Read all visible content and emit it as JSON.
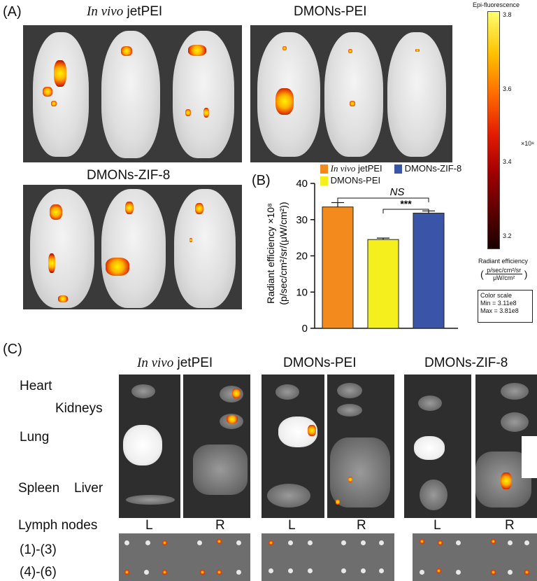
{
  "panels": {
    "a_label": "(A)",
    "b_label": "(B)",
    "c_label": "(C)"
  },
  "groups": {
    "jetpei_italic": "In vivo",
    "jetpei_rest": " jetPEI",
    "dmons_pei": "DMONs-PEI",
    "dmons_zif8": "DMONs-ZIF-8"
  },
  "colorbar": {
    "title": "Epi-fluorescence",
    "ticks": [
      "3.8",
      "3.6",
      "3.4",
      "3.2"
    ],
    "exponent": "×10⁸",
    "unit_label": "Radiant efficiency",
    "unit_num": "p/sec/cm²/sr",
    "unit_den": "μW/cm²",
    "scale_title": "Color scale",
    "scale_min": "Min = 3.11e8",
    "scale_max": "Max = 3.81e8",
    "colors": {
      "low": "#1a0000",
      "high": "#ffff6e"
    }
  },
  "organs": {
    "heart": "Heart",
    "kidneys": "Kidneys",
    "lung": "Lung",
    "spleen": "Spleen",
    "liver": "Liver",
    "lymph": "Lymph nodes",
    "l": "L",
    "r": "R",
    "n13": "(1)-(3)",
    "n46": "(4)-(6)"
  },
  "chart_data": {
    "type": "bar",
    "categories": [
      "In vivo jetPEI",
      "DMONs-PEI",
      "DMONs-ZIF-8"
    ],
    "values": [
      33.5,
      24.5,
      31.8
    ],
    "errors": [
      1.2,
      0.4,
      0.6
    ],
    "colors": [
      "#f28a1e",
      "#f5ef1e",
      "#3a55a8"
    ],
    "ylabel_line1": "Radiant efficiency ×10⁸",
    "ylabel_line2": "(p/sec/cm²/sr/(μW/cm²))",
    "ylim": [
      0,
      40
    ],
    "yticks": [
      "0",
      "10",
      "20",
      "30",
      "40"
    ],
    "legend": [
      "In vivo jetPEI",
      "DMONs-PEI",
      "DMONs-ZIF-8"
    ],
    "legend_italic": "In vivo",
    "legend_rest": " jetPEI",
    "annotations": {
      "ns": "NS",
      "stars": "***"
    }
  }
}
